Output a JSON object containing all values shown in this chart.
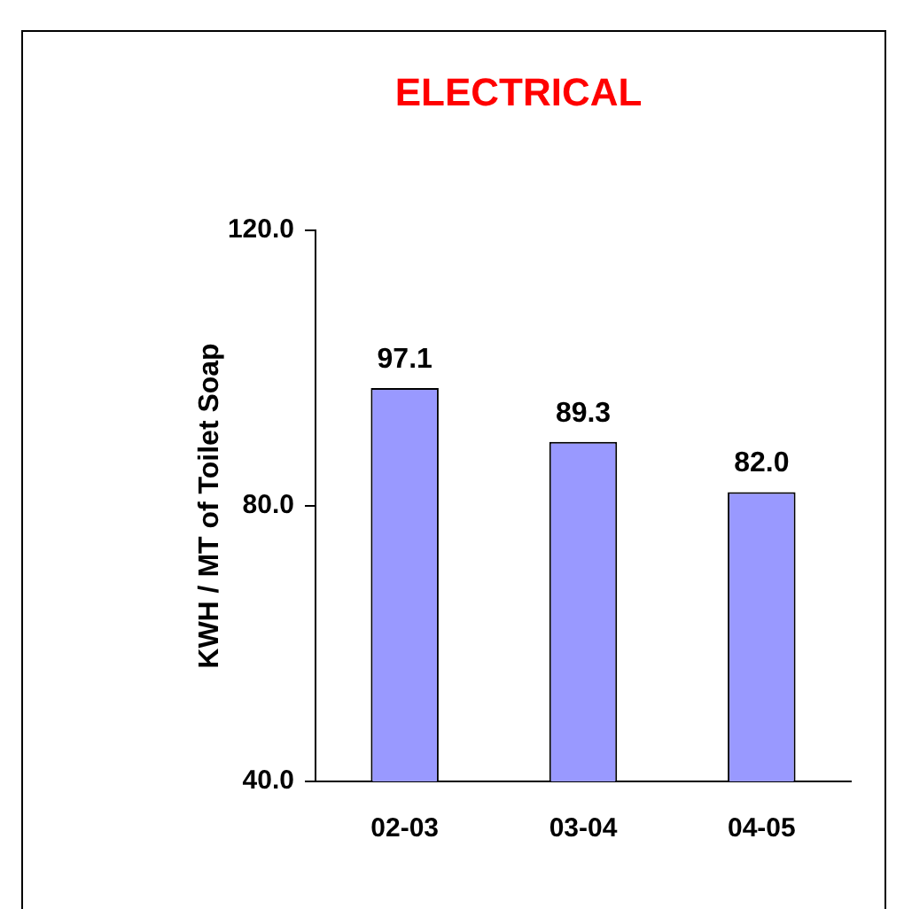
{
  "chart_data": {
    "type": "bar",
    "title": "ELECTRICAL",
    "ylabel": "KWH / MT of Toilet Soap",
    "categories": [
      "02-03",
      "03-04",
      "04-05"
    ],
    "values": [
      97.1,
      89.3,
      82.0
    ],
    "value_labels": [
      "97.1",
      "89.3",
      "82.0"
    ],
    "color": "#9999ff",
    "ylim": [
      40,
      120
    ],
    "yticks": [
      {
        "value": 40,
        "label": "40.0"
      },
      {
        "value": 80,
        "label": "80.0"
      },
      {
        "value": 120,
        "label": "120.0"
      }
    ],
    "grid": false,
    "legend": false
  }
}
